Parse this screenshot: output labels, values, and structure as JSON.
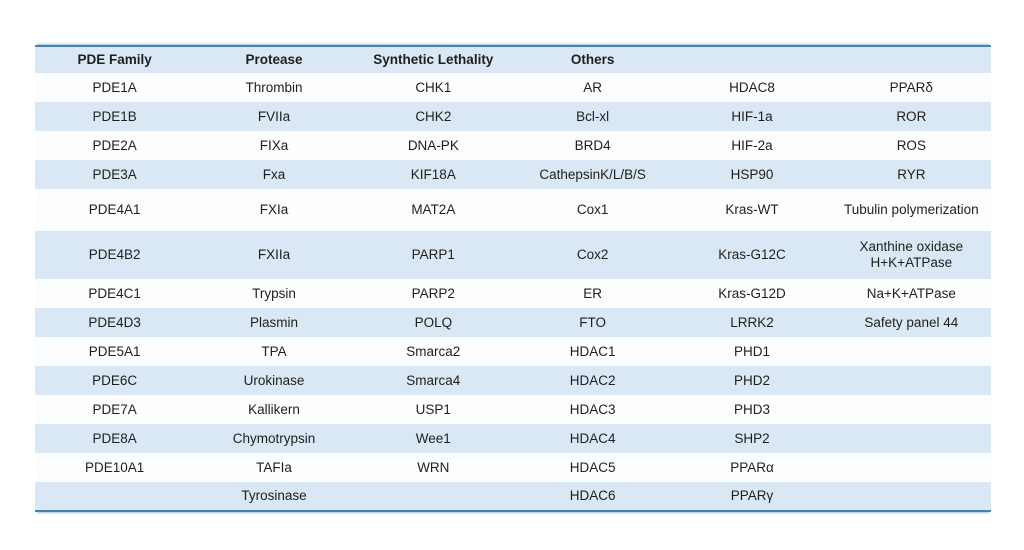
{
  "colors": {
    "row-fill": "#D9E8F4",
    "row-alt": "#FCFDFE",
    "border-strong": "#4A80AE",
    "border-light": "#BCD8EE",
    "text": "#1F1F1F"
  },
  "table": {
    "columns": [
      {
        "label": "PDE Family"
      },
      {
        "label": "Protease"
      },
      {
        "label": "Synthetic Lethality"
      },
      {
        "label": "Others"
      },
      {
        "label": ""
      },
      {
        "label": ""
      }
    ],
    "rows": [
      {
        "size": "",
        "cells": [
          "PDE1A",
          "Thrombin",
          "CHK1",
          "AR",
          "HDAC8",
          "PPARδ"
        ]
      },
      {
        "size": "",
        "cells": [
          "PDE1B",
          "FVIIa",
          "CHK2",
          "Bcl-xl",
          "HIF-1a",
          "ROR"
        ]
      },
      {
        "size": "",
        "cells": [
          "PDE2A",
          "FIXa",
          "DNA-PK",
          "BRD4",
          "HIF-2a",
          "ROS"
        ]
      },
      {
        "size": "",
        "cells": [
          "PDE3A",
          "Fxa",
          "KIF18A",
          "CathepsinK/L/B/S",
          "HSP90",
          "RYR"
        ]
      },
      {
        "size": "tall",
        "cells": [
          "PDE4A1",
          "FXIa",
          "MAT2A",
          "Cox1",
          "Kras-WT",
          "Tubulin polymerization"
        ]
      },
      {
        "size": "xtall",
        "cells": [
          "PDE4B2",
          "FXIIa",
          "PARP1",
          "Cox2",
          "Kras-G12C",
          "Xanthine oxidase\nH+K+ATPase"
        ]
      },
      {
        "size": "",
        "cells": [
          "PDE4C1",
          "Trypsin",
          "PARP2",
          "ER",
          "Kras-G12D",
          "Na+K+ATPase"
        ]
      },
      {
        "size": "",
        "cells": [
          "PDE4D3",
          "Plasmin",
          "POLQ",
          "FTO",
          "LRRK2",
          "Safety panel 44"
        ]
      },
      {
        "size": "",
        "cells": [
          "PDE5A1",
          "TPA",
          "Smarca2",
          "HDAC1",
          "PHD1",
          ""
        ]
      },
      {
        "size": "",
        "cells": [
          "PDE6C",
          "Urokinase",
          "Smarca4",
          "HDAC2",
          "PHD2",
          ""
        ]
      },
      {
        "size": "",
        "cells": [
          "PDE7A",
          "Kallikern",
          "USP1",
          "HDAC3",
          "PHD3",
          ""
        ]
      },
      {
        "size": "",
        "cells": [
          "PDE8A",
          "Chymotrypsin",
          "Wee1",
          "HDAC4",
          "SHP2",
          ""
        ]
      },
      {
        "size": "",
        "cells": [
          "PDE10A1",
          "TAFIa",
          "WRN",
          "HDAC5",
          "PPARα",
          ""
        ]
      },
      {
        "size": "",
        "cells": [
          "",
          "Tyrosinase",
          "",
          "HDAC6",
          "PPARγ",
          ""
        ]
      }
    ]
  }
}
